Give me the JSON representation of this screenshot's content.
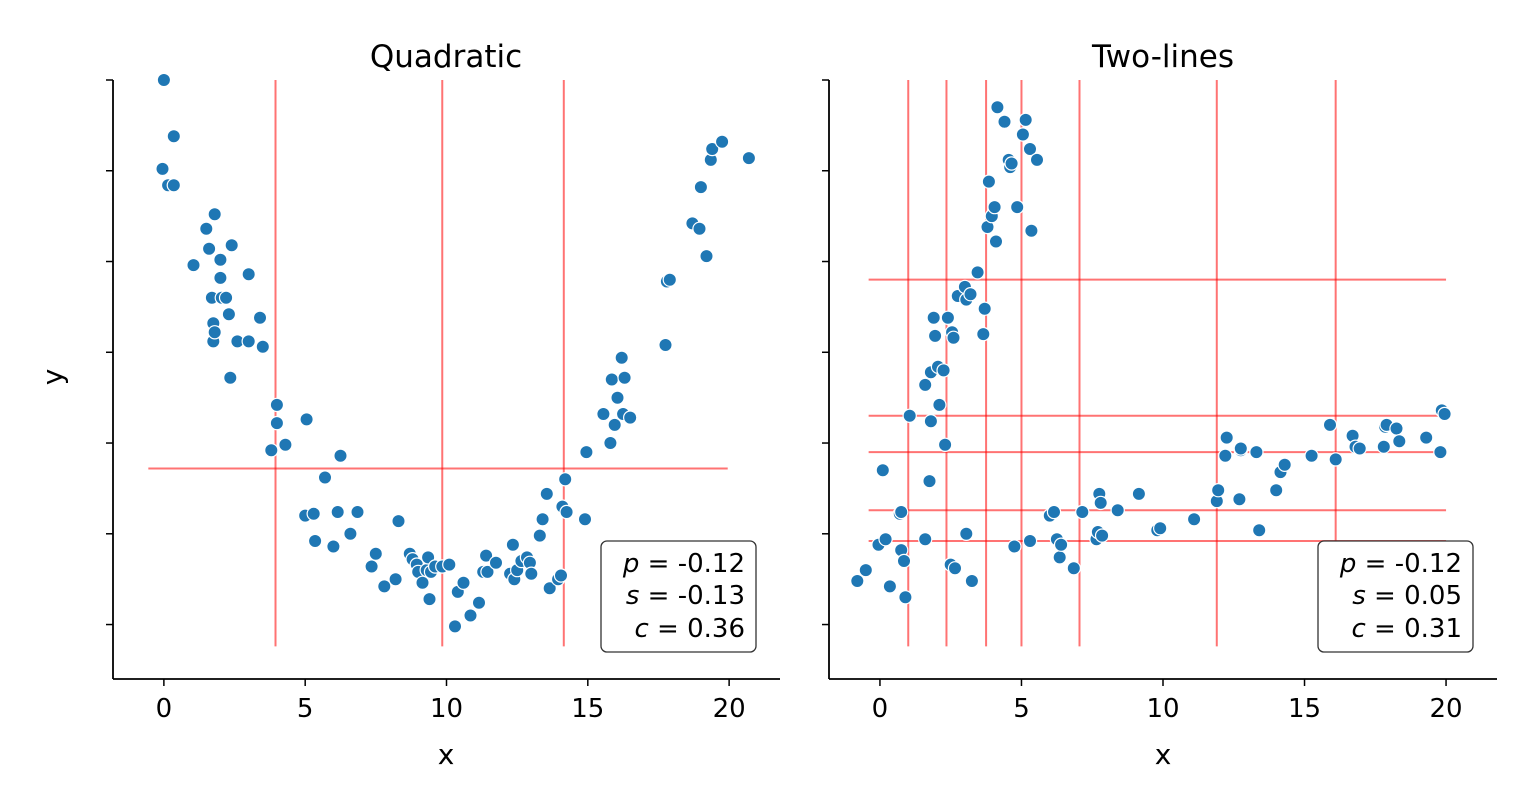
{
  "colors": {
    "points": "#1f77b4",
    "splits": "#ff0000"
  },
  "shared": {
    "ylabel": "y"
  },
  "chart_data": [
    {
      "type": "scatter",
      "title": "Quadratic",
      "xlabel": "x",
      "ylabel": "y",
      "xlim": [
        -1.8,
        21.8
      ],
      "ylim": [
        -3,
        30
      ],
      "xticks": [
        0,
        5,
        10,
        15,
        20
      ],
      "yticks_unlabeled": [
        0,
        5,
        10,
        15,
        20,
        25,
        30
      ],
      "points": [
        [
          0.0,
          30.0
        ],
        [
          -0.05,
          25.1
        ],
        [
          0.15,
          24.2
        ],
        [
          0.35,
          26.9
        ],
        [
          0.35,
          24.2
        ],
        [
          1.05,
          19.8
        ],
        [
          1.5,
          21.8
        ],
        [
          1.6,
          20.7
        ],
        [
          1.7,
          18.0
        ],
        [
          1.75,
          16.6
        ],
        [
          1.8,
          22.6
        ],
        [
          1.75,
          15.6
        ],
        [
          1.8,
          16.1
        ],
        [
          2.0,
          19.1
        ],
        [
          2.0,
          20.1
        ],
        [
          2.05,
          18.0
        ],
        [
          2.2,
          18.0
        ],
        [
          2.4,
          20.9
        ],
        [
          2.3,
          17.1
        ],
        [
          2.35,
          13.6
        ],
        [
          2.6,
          15.6
        ],
        [
          3.0,
          19.3
        ],
        [
          3.0,
          15.6
        ],
        [
          3.4,
          16.9
        ],
        [
          3.5,
          15.3
        ],
        [
          3.8,
          9.6
        ],
        [
          4.0,
          12.1
        ],
        [
          4.0,
          11.1
        ],
        [
          4.3,
          9.9
        ],
        [
          5.05,
          11.3
        ],
        [
          5.0,
          6.0
        ],
        [
          5.3,
          6.1
        ],
        [
          5.35,
          4.6
        ],
        [
          5.7,
          8.1
        ],
        [
          6.0,
          4.3
        ],
        [
          6.15,
          6.2
        ],
        [
          6.25,
          9.3
        ],
        [
          6.6,
          5.0
        ],
        [
          6.85,
          6.2
        ],
        [
          7.35,
          3.2
        ],
        [
          7.5,
          3.9
        ],
        [
          7.8,
          2.1
        ],
        [
          8.2,
          2.5
        ],
        [
          8.3,
          5.7
        ],
        [
          8.7,
          3.9
        ],
        [
          8.8,
          3.6
        ],
        [
          8.95,
          3.3
        ],
        [
          9.0,
          2.9
        ],
        [
          9.15,
          2.3
        ],
        [
          9.3,
          3.0
        ],
        [
          9.35,
          3.7
        ],
        [
          9.4,
          1.4
        ],
        [
          9.45,
          2.9
        ],
        [
          9.6,
          3.2
        ],
        [
          9.85,
          3.2
        ],
        [
          10.1,
          3.3
        ],
        [
          10.3,
          -0.1
        ],
        [
          10.4,
          1.8
        ],
        [
          10.6,
          2.3
        ],
        [
          10.85,
          0.5
        ],
        [
          11.15,
          1.2
        ],
        [
          11.3,
          2.9
        ],
        [
          11.4,
          3.8
        ],
        [
          11.45,
          2.9
        ],
        [
          11.75,
          3.4
        ],
        [
          12.25,
          2.8
        ],
        [
          12.35,
          4.4
        ],
        [
          12.4,
          2.5
        ],
        [
          12.5,
          3.0
        ],
        [
          12.65,
          3.5
        ],
        [
          12.85,
          3.7
        ],
        [
          12.95,
          3.4
        ],
        [
          13.0,
          2.8
        ],
        [
          13.3,
          4.9
        ],
        [
          13.4,
          5.8
        ],
        [
          13.55,
          7.2
        ],
        [
          13.65,
          2.0
        ],
        [
          13.95,
          2.5
        ],
        [
          14.05,
          2.7
        ],
        [
          14.1,
          6.5
        ],
        [
          14.2,
          8.0
        ],
        [
          14.25,
          6.2
        ],
        [
          14.9,
          5.8
        ],
        [
          14.95,
          9.5
        ],
        [
          15.55,
          11.6
        ],
        [
          15.8,
          10.0
        ],
        [
          15.85,
          13.5
        ],
        [
          15.95,
          11.0
        ],
        [
          16.05,
          12.5
        ],
        [
          16.2,
          14.7
        ],
        [
          16.25,
          11.6
        ],
        [
          16.3,
          13.6
        ],
        [
          16.5,
          11.4
        ],
        [
          17.75,
          15.4
        ],
        [
          17.8,
          18.9
        ],
        [
          17.9,
          19.0
        ],
        [
          18.7,
          22.1
        ],
        [
          18.95,
          21.8
        ],
        [
          19.0,
          24.1
        ],
        [
          19.2,
          20.3
        ],
        [
          19.35,
          25.6
        ],
        [
          19.4,
          26.2
        ],
        [
          19.75,
          26.6
        ],
        [
          20.7,
          25.7
        ]
      ],
      "hsplits": [
        8.6
      ],
      "vsplits": [
        3.95,
        9.85,
        14.15
      ],
      "split_extent": {
        "x": [
          -0.55,
          19.95
        ],
        "y": [
          -1.2,
          30.0
        ]
      },
      "stats": {
        "p_label": "p",
        "p": " = -0.12",
        "s_label": "s",
        "s": " = -0.13",
        "c_label": "c",
        "c": " = 0.36"
      },
      "stats_loc": "lower-right"
    },
    {
      "type": "scatter",
      "title": "Two-lines",
      "xlabel": "x",
      "ylabel": "",
      "xlim": [
        -1.8,
        21.8
      ],
      "ylim": [
        -3,
        30
      ],
      "xticks": [
        0,
        5,
        10,
        15,
        20
      ],
      "yticks_unlabeled": [
        0,
        5,
        10,
        15,
        20,
        25,
        30
      ],
      "points": [
        [
          -0.8,
          2.4
        ],
        [
          -0.5,
          3.0
        ],
        [
          -0.05,
          4.4
        ],
        [
          0.1,
          8.5
        ],
        [
          0.2,
          4.7
        ],
        [
          0.35,
          2.1
        ],
        [
          0.7,
          6.1
        ],
        [
          0.75,
          6.2
        ],
        [
          0.75,
          4.1
        ],
        [
          0.85,
          3.5
        ],
        [
          0.9,
          1.5
        ],
        [
          1.05,
          11.5
        ],
        [
          1.6,
          13.2
        ],
        [
          1.6,
          4.7
        ],
        [
          1.75,
          7.9
        ],
        [
          1.8,
          11.2
        ],
        [
          1.8,
          13.9
        ],
        [
          1.9,
          16.9
        ],
        [
          1.95,
          15.9
        ],
        [
          2.05,
          14.2
        ],
        [
          2.1,
          12.1
        ],
        [
          2.25,
          14.0
        ],
        [
          2.3,
          9.9
        ],
        [
          2.4,
          16.9
        ],
        [
          2.5,
          3.3
        ],
        [
          2.55,
          16.1
        ],
        [
          2.6,
          15.8
        ],
        [
          2.65,
          3.1
        ],
        [
          2.75,
          18.1
        ],
        [
          3.0,
          18.6
        ],
        [
          3.05,
          5.0
        ],
        [
          3.05,
          17.9
        ],
        [
          3.2,
          18.2
        ],
        [
          3.25,
          2.4
        ],
        [
          3.45,
          19.4
        ],
        [
          3.65,
          16.0
        ],
        [
          3.7,
          17.4
        ],
        [
          3.8,
          21.9
        ],
        [
          3.85,
          24.4
        ],
        [
          3.95,
          22.5
        ],
        [
          4.05,
          23.0
        ],
        [
          4.1,
          21.1
        ],
        [
          4.15,
          28.5
        ],
        [
          4.4,
          27.7
        ],
        [
          4.55,
          25.6
        ],
        [
          4.6,
          25.2
        ],
        [
          4.65,
          25.4
        ],
        [
          4.75,
          4.3
        ],
        [
          4.85,
          23.0
        ],
        [
          5.05,
          27.0
        ],
        [
          5.15,
          27.8
        ],
        [
          5.3,
          4.6
        ],
        [
          5.3,
          26.2
        ],
        [
          5.35,
          21.7
        ],
        [
          5.55,
          25.6
        ],
        [
          6.0,
          6.0
        ],
        [
          6.15,
          6.2
        ],
        [
          6.25,
          4.7
        ],
        [
          6.35,
          3.7
        ],
        [
          6.4,
          4.4
        ],
        [
          6.85,
          3.1
        ],
        [
          7.15,
          6.2
        ],
        [
          7.65,
          4.7
        ],
        [
          7.7,
          5.1
        ],
        [
          7.75,
          7.2
        ],
        [
          7.8,
          6.7
        ],
        [
          7.85,
          4.9
        ],
        [
          8.4,
          6.3
        ],
        [
          9.15,
          7.2
        ],
        [
          9.8,
          5.2
        ],
        [
          9.9,
          5.3
        ],
        [
          11.1,
          5.8
        ],
        [
          11.9,
          6.8
        ],
        [
          11.95,
          7.4
        ],
        [
          12.2,
          9.3
        ],
        [
          12.25,
          10.3
        ],
        [
          12.7,
          6.9
        ],
        [
          12.75,
          9.6
        ],
        [
          12.75,
          9.7
        ],
        [
          13.3,
          9.5
        ],
        [
          13.4,
          5.2
        ],
        [
          14.0,
          7.4
        ],
        [
          14.15,
          8.4
        ],
        [
          14.3,
          8.8
        ],
        [
          15.25,
          9.3
        ],
        [
          15.9,
          11.0
        ],
        [
          16.1,
          9.1
        ],
        [
          16.7,
          10.4
        ],
        [
          16.8,
          9.8
        ],
        [
          16.95,
          9.7
        ],
        [
          17.8,
          9.8
        ],
        [
          17.85,
          10.9
        ],
        [
          17.9,
          11.0
        ],
        [
          18.25,
          10.8
        ],
        [
          18.35,
          10.1
        ],
        [
          19.3,
          10.3
        ],
        [
          19.8,
          9.5
        ],
        [
          19.85,
          11.8
        ],
        [
          19.95,
          11.6
        ]
      ],
      "hsplits": [
        19.0,
        11.5,
        9.5,
        6.3,
        4.6
      ],
      "vsplits": [
        1.0,
        2.35,
        3.75,
        5.0,
        7.05,
        11.9,
        16.1
      ],
      "split_extent": {
        "x": [
          -0.4,
          20.0
        ],
        "y": [
          -1.2,
          30.0
        ]
      },
      "stats": {
        "p_label": "p",
        "p": " = -0.12",
        "s_label": "s",
        "s": " = 0.05",
        "c_label": "c",
        "c": " = 0.31"
      },
      "stats_loc": "lower-right"
    }
  ]
}
